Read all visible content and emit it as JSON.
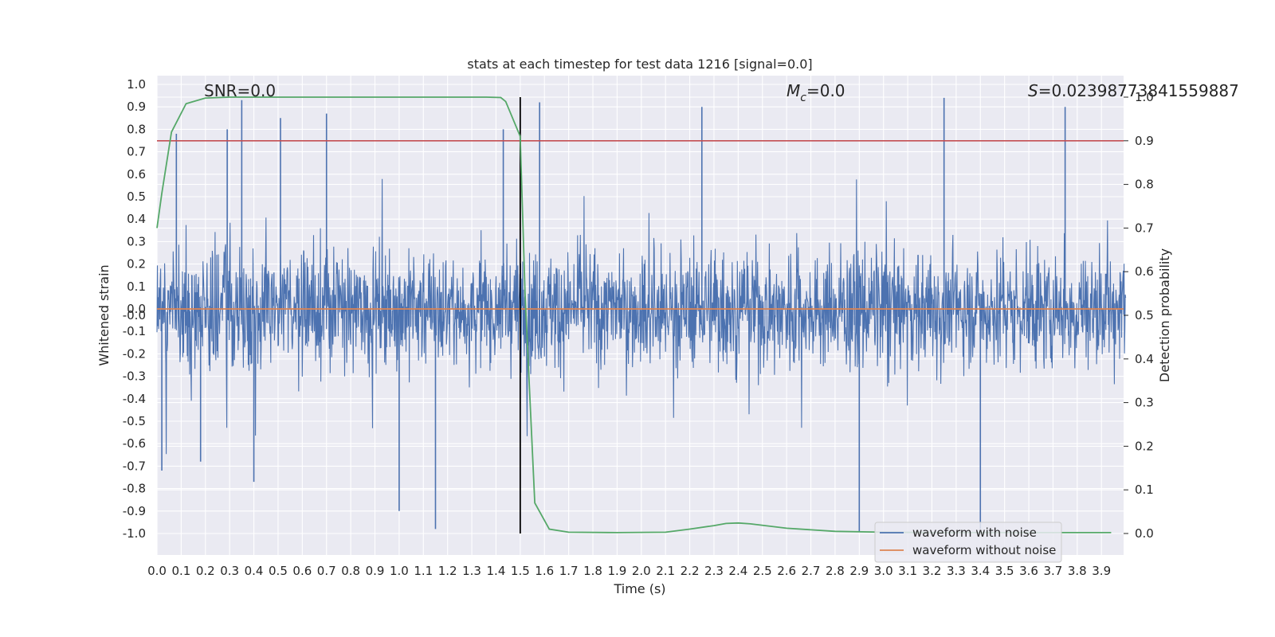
{
  "chart_data": {
    "type": "line",
    "title": "stats at each timestep for test data 1216 [signal=0.0]",
    "xlabel": "Time (s)",
    "ylabel_left": "Whitened strain",
    "ylabel_right": "Detection probability",
    "xlim": [
      0.0,
      4.0
    ],
    "ylim_left": [
      -1.1,
      1.05
    ],
    "ylim_right": [
      -0.05,
      1.0
    ],
    "x_ticks": [
      "0.0",
      "0.1",
      "0.2",
      "0.3",
      "0.4",
      "0.5",
      "0.6",
      "0.7",
      "0.8",
      "0.9",
      "1.0",
      "1.1",
      "1.2",
      "1.3",
      "1.4",
      "1.5",
      "1.6",
      "1.7",
      "1.8",
      "1.9",
      "2.0",
      "2.1",
      "2.2",
      "2.3",
      "2.4",
      "2.5",
      "2.6",
      "2.7",
      "2.8",
      "2.9",
      "3.0",
      "3.1",
      "3.2",
      "3.3",
      "3.4",
      "3.5",
      "3.6",
      "3.7",
      "3.8",
      "3.9"
    ],
    "y_ticks_left": [
      "1.0",
      "0.9",
      "0.8",
      "0.7",
      "0.6",
      "0.5",
      "0.4",
      "0.3",
      "0.2",
      "0.1",
      "0.0",
      "-0.0",
      "-0.1",
      "-0.2",
      "-0.3",
      "-0.4",
      "-0.5",
      "-0.6",
      "-0.7",
      "-0.8",
      "-0.9",
      "-1.0"
    ],
    "y_ticks_right": [
      "1.0",
      "0.9",
      "0.8",
      "0.7",
      "0.6",
      "0.5",
      "0.4",
      "0.3",
      "0.2",
      "0.1",
      "0.0"
    ],
    "annotations": {
      "snr": "SNR=0.0",
      "mc_symbol": "M",
      "mc_sub": "c",
      "mc_value": "=0.0",
      "s_symbol": "S",
      "s_value": "=0.02398773841559887"
    },
    "threshold": 0.9,
    "marker_time": 1.5,
    "series": [
      {
        "name": "waveform with noise",
        "color": "#4c72b0",
        "axis": "left",
        "style": "dense noise, roughly within -0.5 to 0.5 with spikes to about ±0.95",
        "spikes": [
          {
            "x": 0.02,
            "y": -0.72
          },
          {
            "x": 0.08,
            "y": 0.78
          },
          {
            "x": 0.18,
            "y": -0.68
          },
          {
            "x": 0.29,
            "y": 0.8
          },
          {
            "x": 0.35,
            "y": 0.93
          },
          {
            "x": 0.4,
            "y": -0.77
          },
          {
            "x": 0.51,
            "y": 0.85
          },
          {
            "x": 0.7,
            "y": 0.87
          },
          {
            "x": 1.0,
            "y": -0.9
          },
          {
            "x": 1.15,
            "y": -0.98
          },
          {
            "x": 1.43,
            "y": 0.8
          },
          {
            "x": 1.58,
            "y": 0.92
          },
          {
            "x": 2.25,
            "y": 0.9
          },
          {
            "x": 2.9,
            "y": -0.99
          },
          {
            "x": 3.25,
            "y": 0.94
          },
          {
            "x": 3.4,
            "y": -0.98
          },
          {
            "x": 3.75,
            "y": 0.9
          }
        ]
      },
      {
        "name": "waveform without noise",
        "color": "#dd8452",
        "axis": "left",
        "x": [
          0.0,
          4.0
        ],
        "y": [
          0.0,
          0.0
        ]
      },
      {
        "name": "detection probability",
        "color": "#55a868",
        "axis": "right",
        "x": [
          0.0,
          0.02,
          0.06,
          0.12,
          0.2,
          0.3,
          0.5,
          0.8,
          1.1,
          1.36,
          1.42,
          1.44,
          1.5,
          1.52,
          1.56,
          1.62,
          1.7,
          1.9,
          2.1,
          2.2,
          2.3,
          2.35,
          2.4,
          2.45,
          2.6,
          2.8,
          3.0,
          3.2,
          3.5,
          3.8,
          3.94
        ],
        "y": [
          0.7,
          0.78,
          0.92,
          0.985,
          0.998,
          1.0,
          1.0,
          1.0,
          1.0,
          1.0,
          0.999,
          0.99,
          0.91,
          0.55,
          0.07,
          0.01,
          0.003,
          0.002,
          0.003,
          0.01,
          0.018,
          0.023,
          0.024,
          0.022,
          0.012,
          0.005,
          0.003,
          0.002,
          0.002,
          0.002,
          0.002
        ]
      }
    ],
    "legend": {
      "placement": "bottom-right",
      "entries": [
        {
          "label": "waveform with noise",
          "color": "#4c72b0"
        },
        {
          "label": "waveform without noise",
          "color": "#dd8452"
        }
      ]
    },
    "colors": {
      "background": "#eaeaf2",
      "grid": "#ffffff",
      "threshold": "#c44e52",
      "marker": "#000000"
    }
  }
}
